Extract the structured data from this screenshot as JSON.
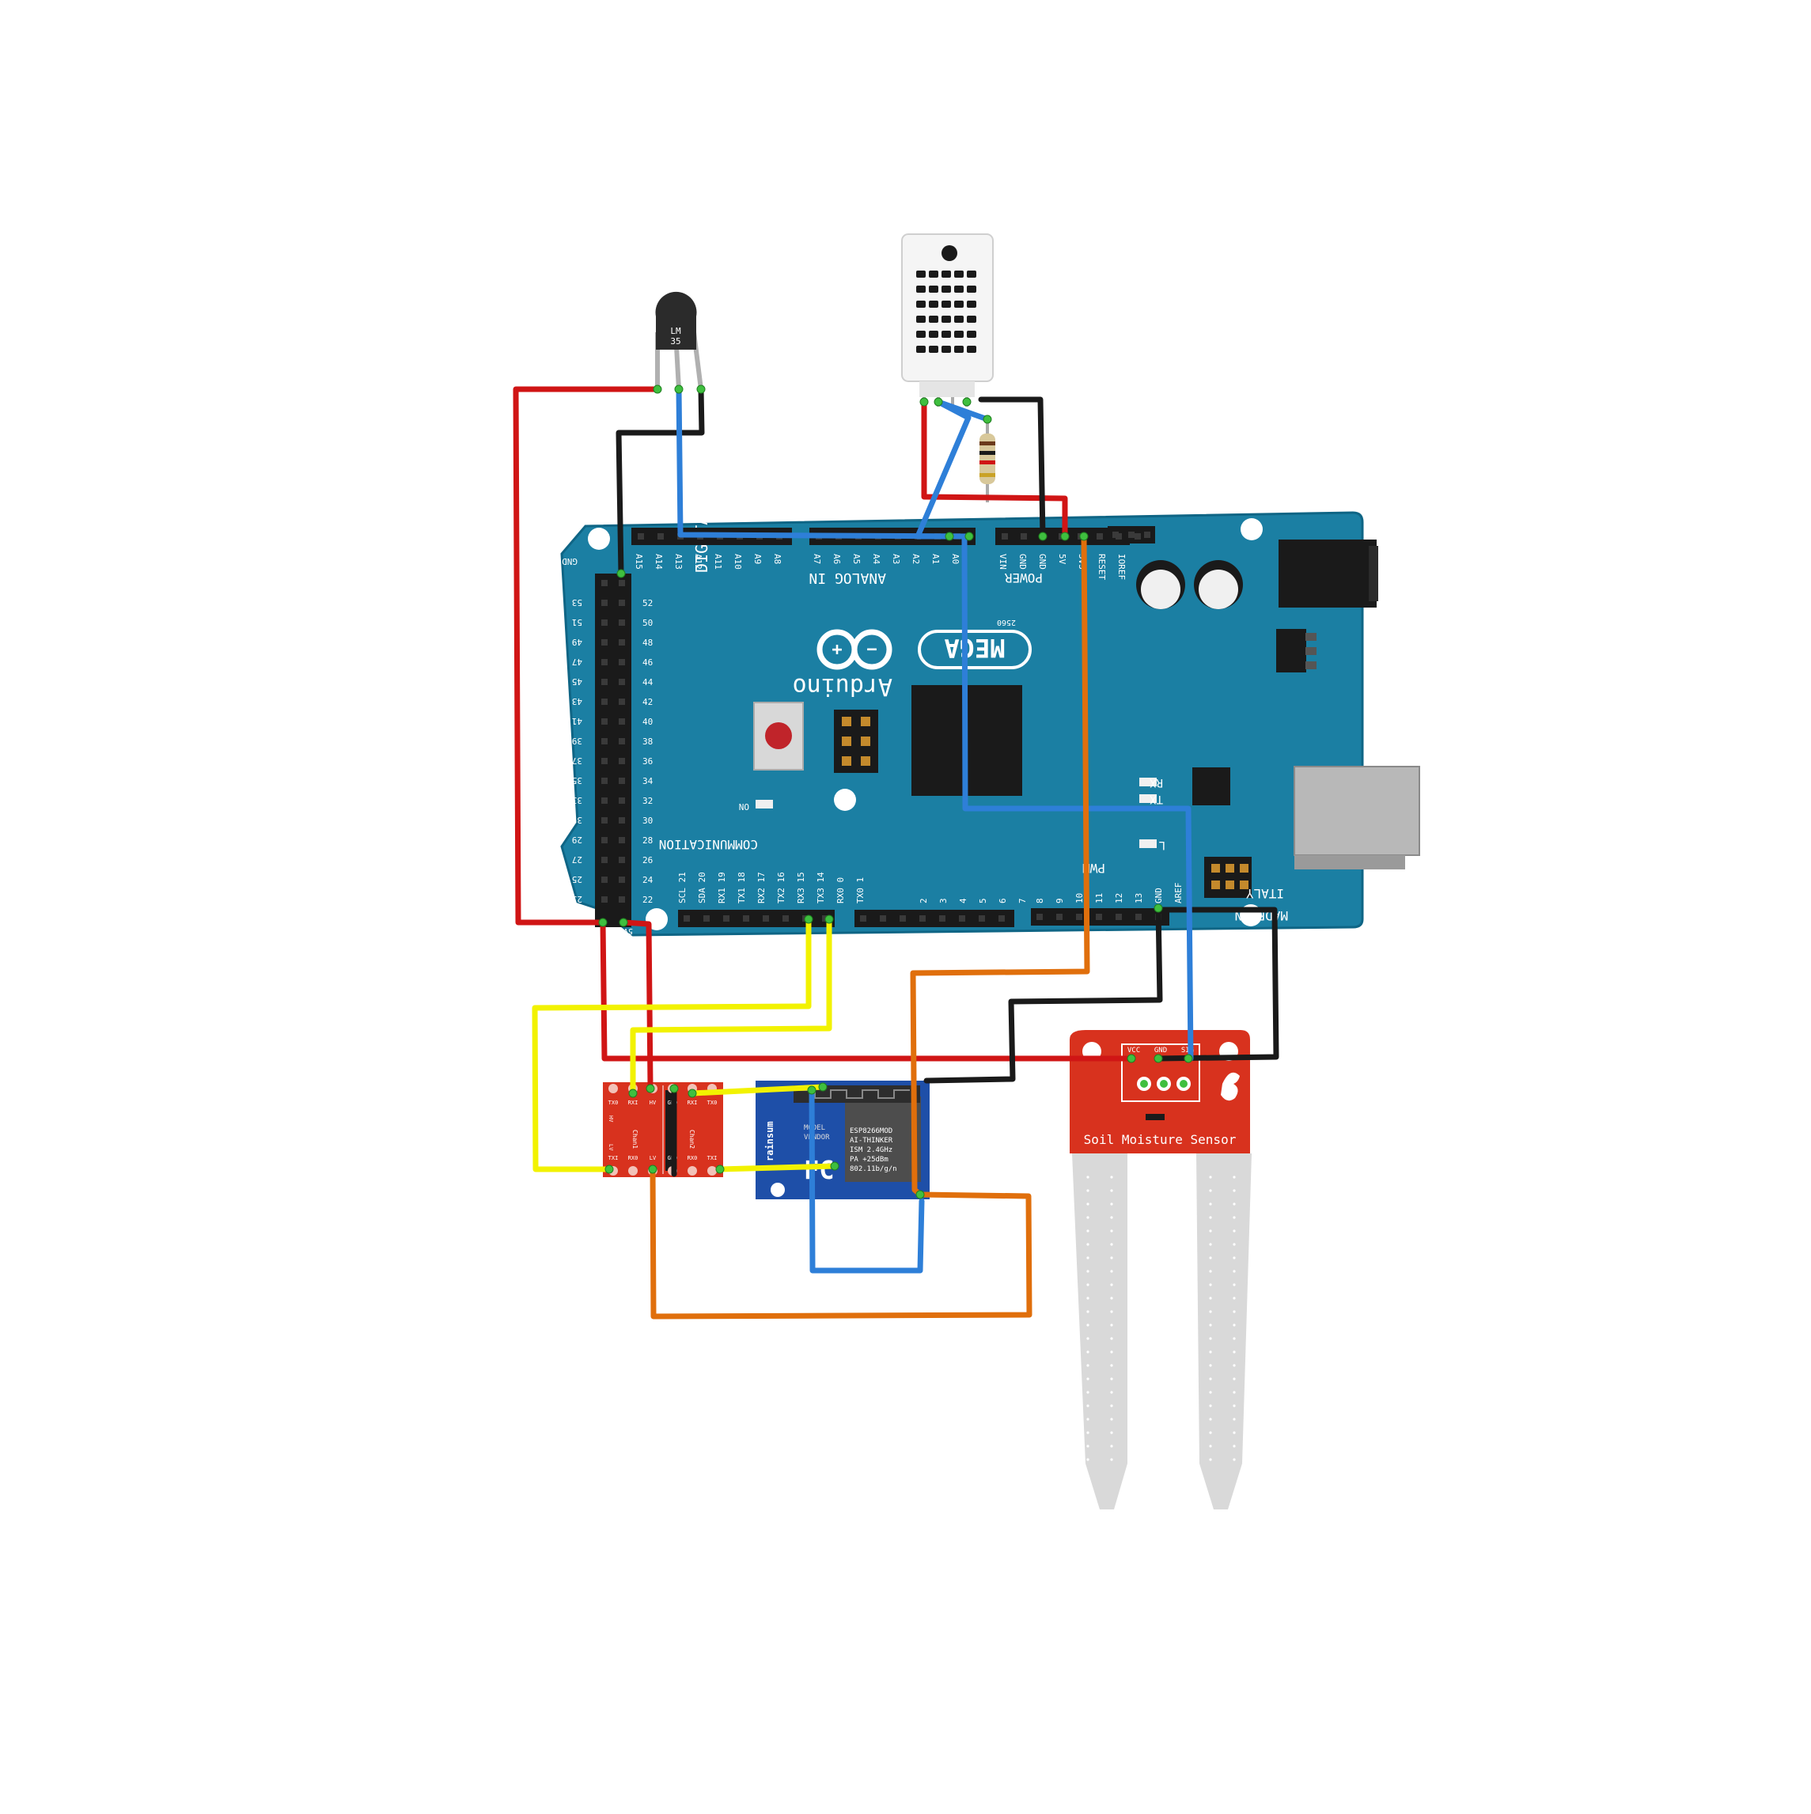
{
  "diagram": {
    "lm35": {
      "label_1": "LM",
      "label_2": "35"
    },
    "arduino": {
      "brand": "Arduino",
      "model": "MEGA",
      "sub_model": "2560",
      "origin": "MADE IN",
      "country": "ITALY",
      "sections": {
        "digital": "DIGITAL",
        "analog_in": "ANALOG IN",
        "power": "POWER",
        "communication": "COMMUNICATION",
        "pwm": "PWM"
      },
      "leds": {
        "on": "ON",
        "l": "L",
        "tx": "TX",
        "rx": "RX"
      },
      "pins": {
        "analog": [
          "A15",
          "A14",
          "A13",
          "A12",
          "A11",
          "A10",
          "A9",
          "A8",
          "A7",
          "A6",
          "A5",
          "A4",
          "A3",
          "A2",
          "A1",
          "A0"
        ],
        "power": [
          "VIN",
          "GND",
          "GND",
          "5V",
          "3V3",
          "RESET",
          "IOREF"
        ],
        "communication": [
          "SCL 21",
          "SDA 20",
          "RX1 19",
          "TX1 18",
          "RX2 17",
          "TX2 16",
          "RX3 15",
          "TX3 14",
          "RX0 0",
          "TX0 1"
        ],
        "pwm": [
          "2",
          "3",
          "4",
          "5",
          "6",
          "7",
          "8",
          "9",
          "10",
          "11",
          "12",
          "13",
          "GND",
          "AREF"
        ],
        "digital_left": [
          "53",
          "51",
          "49",
          "47",
          "45",
          "43",
          "41",
          "39",
          "37",
          "35",
          "33",
          "31",
          "29",
          "27",
          "25",
          "23"
        ],
        "digital_right": [
          "52",
          "50",
          "48",
          "46",
          "44",
          "42",
          "40",
          "38",
          "36",
          "34",
          "32",
          "30",
          "28",
          "26",
          "24",
          "22"
        ],
        "header_gnd": "GND",
        "header_5v": "5V"
      }
    },
    "level_shifter": {
      "top_pins": [
        "TX0",
        "RXI",
        "HV",
        "GND",
        "RXI",
        "TX0"
      ],
      "bottom_pins": [
        "TXI",
        "RX0",
        "LV",
        "GND",
        "RX0",
        "TXI"
      ],
      "chan_left": "Chan1",
      "chan_right": "Chan2",
      "side_hv": "HV",
      "side_lv": "LV"
    },
    "esp8266": {
      "brand": "rainsum",
      "line_1": "MODEL",
      "line_2": "VENDOR",
      "cert": "FC",
      "specs": [
        "ESP8266MOD",
        "AI-THINKER",
        "ISM 2.4GHz",
        "PA +25dBm",
        "802.11b/g/n"
      ]
    },
    "soil_sensor": {
      "title": "Soil Moisture Sensor",
      "pins": [
        "VCC",
        "GND",
        "SIG"
      ]
    },
    "colors": {
      "board": "#1b7fa3",
      "red_wire": "#d01515",
      "black_wire": "#1a1a1a",
      "blue_wire": "#2e7fd8",
      "yellow_wire": "#f2f200",
      "orange_wire": "#e06f0c",
      "sensor_red": "#d8321e"
    }
  }
}
